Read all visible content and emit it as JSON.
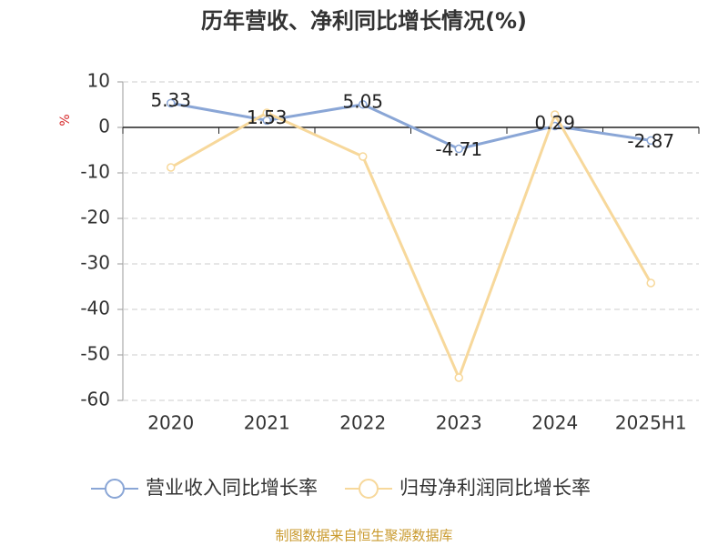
{
  "chart_data": {
    "type": "line",
    "title": "历年营收、净利同比增长情况(%)",
    "y_label": "%",
    "categories": [
      "2020",
      "2021",
      "2022",
      "2023",
      "2024",
      "2025H1"
    ],
    "series": [
      {
        "name": "营业收入同比增长率",
        "color": "#8aa6d6",
        "values": [
          5.33,
          1.53,
          5.05,
          -4.71,
          0.29,
          -2.87
        ],
        "data_labels": true
      },
      {
        "name": "归母净利润同比增长率",
        "color": "#f7d89b",
        "values": [
          -8.8,
          3.2,
          -6.4,
          -55,
          2.8,
          -34.2
        ],
        "data_labels": false
      }
    ],
    "ylim": [
      -60,
      10
    ],
    "yticks": [
      10,
      0,
      -10,
      -20,
      -30,
      -40,
      -50,
      -60
    ],
    "grid": true,
    "legend": "bottom",
    "source": "制图数据来自恒生聚源数据库"
  }
}
